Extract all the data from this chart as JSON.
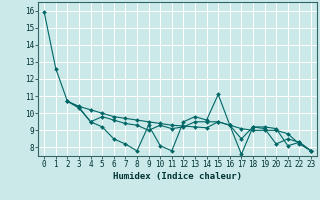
{
  "xlabel": "Humidex (Indice chaleur)",
  "bg_color": "#cce9e9",
  "grid_color": "#ffffff",
  "line_color": "#006666",
  "xlim": [
    -0.5,
    23.5
  ],
  "ylim": [
    7.5,
    16.5
  ],
  "yticks": [
    8,
    9,
    10,
    11,
    12,
    13,
    14,
    15,
    16
  ],
  "xticks": [
    0,
    1,
    2,
    3,
    4,
    5,
    6,
    7,
    8,
    9,
    10,
    11,
    12,
    13,
    14,
    15,
    16,
    17,
    18,
    19,
    20,
    21,
    22,
    23
  ],
  "series1_x": [
    0,
    1,
    2,
    3,
    4,
    5,
    6,
    7,
    8,
    9,
    10,
    11,
    12,
    13,
    14,
    15,
    16,
    17,
    18,
    19,
    20,
    21,
    22,
    23
  ],
  "series1_y": [
    15.9,
    12.6,
    10.7,
    10.3,
    9.5,
    9.2,
    8.5,
    8.2,
    7.8,
    9.3,
    8.1,
    7.8,
    9.5,
    9.8,
    9.6,
    11.1,
    9.3,
    7.6,
    9.2,
    9.2,
    9.1,
    8.1,
    8.3,
    7.8
  ],
  "series2_x": [
    2,
    3,
    4,
    5,
    6,
    7,
    8,
    9,
    10,
    11,
    12,
    13,
    14,
    15,
    16,
    17,
    18,
    19,
    20,
    21,
    22,
    23
  ],
  "series2_y": [
    10.7,
    10.4,
    10.2,
    10.0,
    9.8,
    9.7,
    9.6,
    9.5,
    9.4,
    9.3,
    9.25,
    9.2,
    9.15,
    9.5,
    9.3,
    9.1,
    9.0,
    9.0,
    9.0,
    8.8,
    8.2,
    7.8
  ],
  "series3_x": [
    2,
    3,
    4,
    5,
    6,
    7,
    8,
    9,
    10,
    11,
    12,
    13,
    14,
    15,
    16,
    17,
    18,
    19,
    20,
    21,
    22,
    23
  ],
  "series3_y": [
    10.7,
    10.35,
    9.5,
    9.8,
    9.6,
    9.4,
    9.3,
    9.0,
    9.3,
    9.1,
    9.2,
    9.5,
    9.5,
    9.5,
    9.3,
    8.5,
    9.2,
    9.1,
    8.2,
    8.5,
    8.3,
    7.8
  ]
}
